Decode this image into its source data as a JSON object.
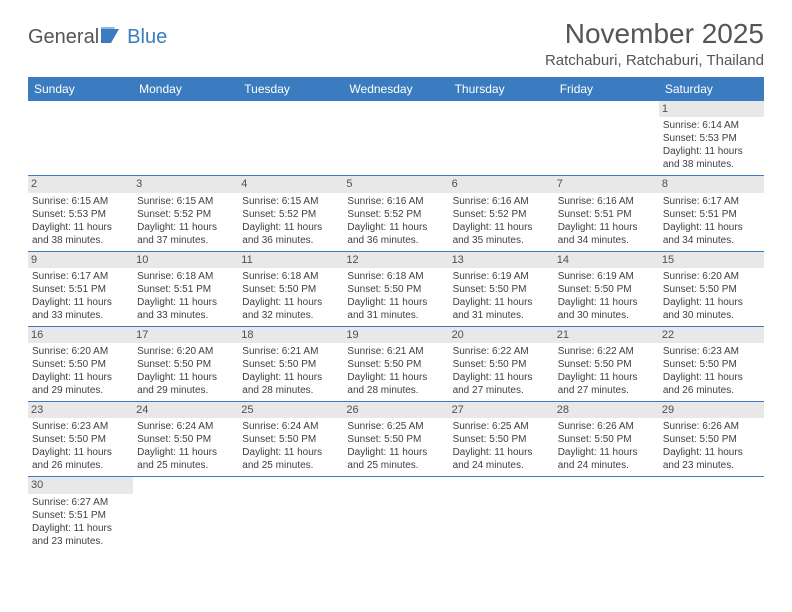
{
  "logo": {
    "part1": "General",
    "part2": "Blue"
  },
  "title": "November 2025",
  "location": "Ratchaburi, Ratchaburi, Thailand",
  "colors": {
    "header_bg": "#3a7cbf",
    "header_text": "#ffffff",
    "daynum_bg": "#e8e8e8",
    "rule": "#3a7cbf",
    "text": "#404040",
    "title_color": "#555555"
  },
  "weekdays": [
    "Sunday",
    "Monday",
    "Tuesday",
    "Wednesday",
    "Thursday",
    "Friday",
    "Saturday"
  ],
  "weeks": [
    [
      null,
      null,
      null,
      null,
      null,
      null,
      {
        "d": "1",
        "sr": "6:14 AM",
        "ss": "5:53 PM",
        "dl1": "11 hours",
        "dl2": "and 38 minutes."
      }
    ],
    [
      {
        "d": "2",
        "sr": "6:15 AM",
        "ss": "5:53 PM",
        "dl1": "11 hours",
        "dl2": "and 38 minutes."
      },
      {
        "d": "3",
        "sr": "6:15 AM",
        "ss": "5:52 PM",
        "dl1": "11 hours",
        "dl2": "and 37 minutes."
      },
      {
        "d": "4",
        "sr": "6:15 AM",
        "ss": "5:52 PM",
        "dl1": "11 hours",
        "dl2": "and 36 minutes."
      },
      {
        "d": "5",
        "sr": "6:16 AM",
        "ss": "5:52 PM",
        "dl1": "11 hours",
        "dl2": "and 36 minutes."
      },
      {
        "d": "6",
        "sr": "6:16 AM",
        "ss": "5:52 PM",
        "dl1": "11 hours",
        "dl2": "and 35 minutes."
      },
      {
        "d": "7",
        "sr": "6:16 AM",
        "ss": "5:51 PM",
        "dl1": "11 hours",
        "dl2": "and 34 minutes."
      },
      {
        "d": "8",
        "sr": "6:17 AM",
        "ss": "5:51 PM",
        "dl1": "11 hours",
        "dl2": "and 34 minutes."
      }
    ],
    [
      {
        "d": "9",
        "sr": "6:17 AM",
        "ss": "5:51 PM",
        "dl1": "11 hours",
        "dl2": "and 33 minutes."
      },
      {
        "d": "10",
        "sr": "6:18 AM",
        "ss": "5:51 PM",
        "dl1": "11 hours",
        "dl2": "and 33 minutes."
      },
      {
        "d": "11",
        "sr": "6:18 AM",
        "ss": "5:50 PM",
        "dl1": "11 hours",
        "dl2": "and 32 minutes."
      },
      {
        "d": "12",
        "sr": "6:18 AM",
        "ss": "5:50 PM",
        "dl1": "11 hours",
        "dl2": "and 31 minutes."
      },
      {
        "d": "13",
        "sr": "6:19 AM",
        "ss": "5:50 PM",
        "dl1": "11 hours",
        "dl2": "and 31 minutes."
      },
      {
        "d": "14",
        "sr": "6:19 AM",
        "ss": "5:50 PM",
        "dl1": "11 hours",
        "dl2": "and 30 minutes."
      },
      {
        "d": "15",
        "sr": "6:20 AM",
        "ss": "5:50 PM",
        "dl1": "11 hours",
        "dl2": "and 30 minutes."
      }
    ],
    [
      {
        "d": "16",
        "sr": "6:20 AM",
        "ss": "5:50 PM",
        "dl1": "11 hours",
        "dl2": "and 29 minutes."
      },
      {
        "d": "17",
        "sr": "6:20 AM",
        "ss": "5:50 PM",
        "dl1": "11 hours",
        "dl2": "and 29 minutes."
      },
      {
        "d": "18",
        "sr": "6:21 AM",
        "ss": "5:50 PM",
        "dl1": "11 hours",
        "dl2": "and 28 minutes."
      },
      {
        "d": "19",
        "sr": "6:21 AM",
        "ss": "5:50 PM",
        "dl1": "11 hours",
        "dl2": "and 28 minutes."
      },
      {
        "d": "20",
        "sr": "6:22 AM",
        "ss": "5:50 PM",
        "dl1": "11 hours",
        "dl2": "and 27 minutes."
      },
      {
        "d": "21",
        "sr": "6:22 AM",
        "ss": "5:50 PM",
        "dl1": "11 hours",
        "dl2": "and 27 minutes."
      },
      {
        "d": "22",
        "sr": "6:23 AM",
        "ss": "5:50 PM",
        "dl1": "11 hours",
        "dl2": "and 26 minutes."
      }
    ],
    [
      {
        "d": "23",
        "sr": "6:23 AM",
        "ss": "5:50 PM",
        "dl1": "11 hours",
        "dl2": "and 26 minutes."
      },
      {
        "d": "24",
        "sr": "6:24 AM",
        "ss": "5:50 PM",
        "dl1": "11 hours",
        "dl2": "and 25 minutes."
      },
      {
        "d": "25",
        "sr": "6:24 AM",
        "ss": "5:50 PM",
        "dl1": "11 hours",
        "dl2": "and 25 minutes."
      },
      {
        "d": "26",
        "sr": "6:25 AM",
        "ss": "5:50 PM",
        "dl1": "11 hours",
        "dl2": "and 25 minutes."
      },
      {
        "d": "27",
        "sr": "6:25 AM",
        "ss": "5:50 PM",
        "dl1": "11 hours",
        "dl2": "and 24 minutes."
      },
      {
        "d": "28",
        "sr": "6:26 AM",
        "ss": "5:50 PM",
        "dl1": "11 hours",
        "dl2": "and 24 minutes."
      },
      {
        "d": "29",
        "sr": "6:26 AM",
        "ss": "5:50 PM",
        "dl1": "11 hours",
        "dl2": "and 23 minutes."
      }
    ],
    [
      {
        "d": "30",
        "sr": "6:27 AM",
        "ss": "5:51 PM",
        "dl1": "11 hours",
        "dl2": "and 23 minutes."
      },
      null,
      null,
      null,
      null,
      null,
      null
    ]
  ],
  "labels": {
    "sunrise": "Sunrise:",
    "sunset": "Sunset:",
    "daylight": "Daylight:"
  }
}
